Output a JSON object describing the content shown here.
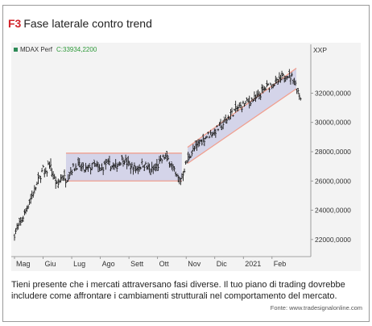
{
  "figure": {
    "label": "F3",
    "title": "Fase laterale contro trend",
    "caption": "Tieni presente che i mercati attraversano fasi diverse. Il tuo piano di trading dovrebbe includere come affrontare i cambiamenti strutturali nel comportamento del mercato.",
    "source": "Fonte: www.tradesignalonline.com"
  },
  "colors": {
    "price_bars": "#1a1a1a",
    "channel_fill": "#c9c9e6",
    "channel_border": "#f0a090",
    "legend_marker": "#2e8b57",
    "legend_value": "#2e9a3a",
    "figure_label": "#d2232a"
  },
  "chart_data": {
    "type": "bar",
    "legend": {
      "name": "MDAX Perf",
      "value": "C:33934,2200",
      "placement": "top-left"
    },
    "y_axis_title": "XXP",
    "y_axis_side": "right",
    "ylim": [
      21000,
      35000
    ],
    "y_ticks": [
      "32000,0000",
      "30000,0000",
      "28000,0000",
      "26000,0000",
      "24000,0000",
      "22000,0000"
    ],
    "y_tick_values": [
      32000,
      30000,
      28000,
      26000,
      24000,
      22000
    ],
    "x_ticks": [
      "Mag",
      "Giu",
      "Lug",
      "Ago",
      "Sett",
      "Ott",
      "Nov",
      "Dic",
      "2021",
      "Feb"
    ],
    "x_range_months": [
      0,
      10.3
    ],
    "grid": false,
    "price_path": [
      [
        0.0,
        22400
      ],
      [
        0.25,
        23300
      ],
      [
        0.5,
        24500
      ],
      [
        0.75,
        25600
      ],
      [
        1.0,
        26800
      ],
      [
        1.1,
        26400
      ],
      [
        1.2,
        27300
      ],
      [
        1.3,
        26700
      ],
      [
        1.5,
        25600
      ],
      [
        1.65,
        26400
      ],
      [
        1.8,
        26100
      ],
      [
        2.0,
        26800
      ],
      [
        2.2,
        27100
      ],
      [
        2.5,
        26700
      ],
      [
        2.8,
        27100
      ],
      [
        3.0,
        26700
      ],
      [
        3.2,
        27200
      ],
      [
        3.5,
        26900
      ],
      [
        3.8,
        27600
      ],
      [
        4.0,
        27100
      ],
      [
        4.25,
        26800
      ],
      [
        4.5,
        27200
      ],
      [
        4.75,
        26700
      ],
      [
        5.0,
        27000
      ],
      [
        5.25,
        27700
      ],
      [
        5.45,
        27300
      ],
      [
        5.65,
        26300
      ],
      [
        5.8,
        26000
      ],
      [
        5.95,
        26900
      ],
      [
        6.1,
        27700
      ],
      [
        6.3,
        28200
      ],
      [
        6.5,
        28700
      ],
      [
        6.75,
        29100
      ],
      [
        7.0,
        29400
      ],
      [
        7.25,
        29800
      ],
      [
        7.5,
        30400
      ],
      [
        7.75,
        30900
      ],
      [
        8.0,
        31200
      ],
      [
        8.25,
        31500
      ],
      [
        8.5,
        31700
      ],
      [
        8.75,
        32300
      ],
      [
        9.0,
        32600
      ],
      [
        9.25,
        32800
      ],
      [
        9.5,
        33300
      ],
      [
        9.75,
        33000
      ],
      [
        9.9,
        32200
      ],
      [
        10.0,
        31700
      ]
    ],
    "channels": [
      {
        "kind": "lateral",
        "from": [
          1.8,
          27900
        ],
        "to": [
          5.85,
          27900
        ],
        "lower_from": [
          1.8,
          26000
        ],
        "lower_to": [
          5.85,
          26000
        ]
      },
      {
        "kind": "trend",
        "from": [
          6.05,
          28300
        ],
        "to": [
          9.85,
          33700
        ],
        "lower_from": [
          6.05,
          27200
        ],
        "lower_to": [
          9.85,
          32300
        ]
      }
    ]
  }
}
